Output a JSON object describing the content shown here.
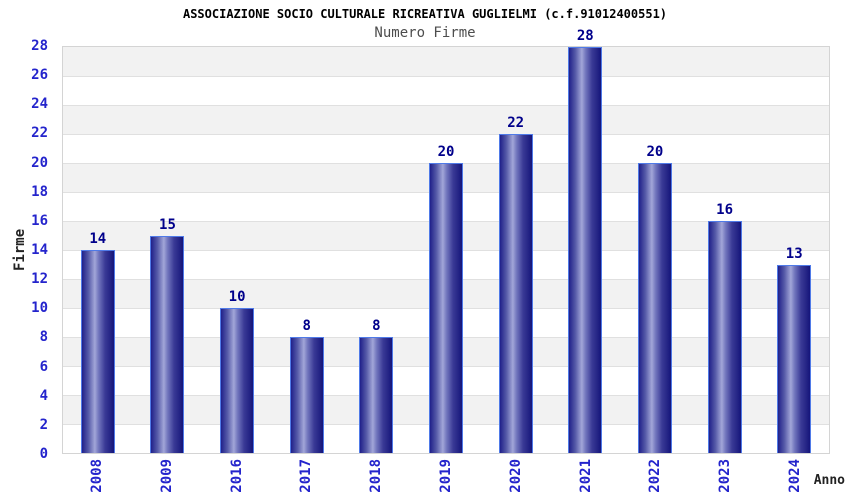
{
  "chart_data": {
    "type": "bar",
    "title": "ASSOCIAZIONE SOCIO CULTURALE RICREATIVA GUGLIELMI (c.f.91012400551)",
    "subtitle": "Numero Firme",
    "xlabel": "Anno",
    "ylabel": "Firme",
    "categories": [
      "2008",
      "2009",
      "2016",
      "2017",
      "2018",
      "2019",
      "2020",
      "2021",
      "2022",
      "2023",
      "2024"
    ],
    "values": [
      14,
      15,
      10,
      8,
      8,
      20,
      22,
      28,
      20,
      16,
      13
    ],
    "ylim": [
      0,
      28
    ],
    "ytick_step": 2,
    "grid": "horizontal-bands-alternating",
    "legend": "none",
    "bar_value_labels_shown": true
  },
  "colors": {
    "background": "#ffffff",
    "title_color": "#000000",
    "subtitle_color": "#4d4d4d",
    "axis_title_color": "#222222",
    "tick_label_blue": "#2424cc",
    "value_label_navy": "#00008b",
    "band_white": "#ffffff",
    "band_gray": "#f2f2f2",
    "grid_line": "#e0e0e0",
    "plot_border": "#d4d4d4",
    "bar_border": "#4f7ae8",
    "bar_gradient_stops": [
      "#20208a",
      "#565aa8",
      "#a2a6d8",
      "#7276bd",
      "#3a3a96",
      "#15157a"
    ],
    "bar_gradient_positions": [
      0,
      20,
      40,
      52,
      72,
      100
    ]
  }
}
